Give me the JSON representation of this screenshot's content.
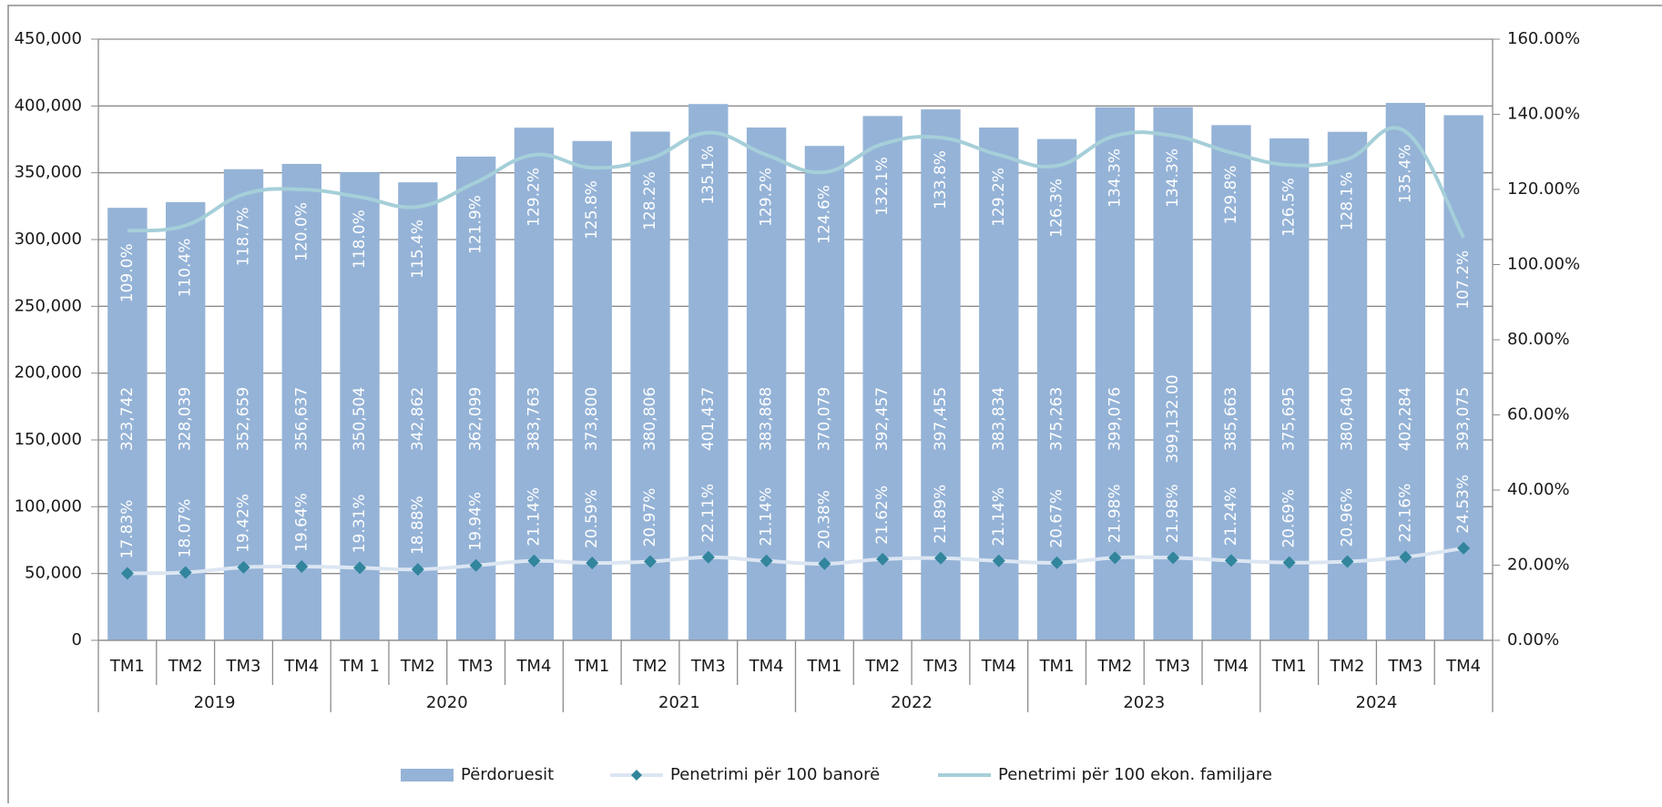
{
  "chart_data": {
    "type": "bar",
    "categories": [
      "TM1",
      "TM2",
      "TM3",
      "TM4",
      "TM 1",
      "TM2",
      "TM3",
      "TM4",
      "TM1",
      "TM2",
      "TM3",
      "TM4",
      "TM1",
      "TM2",
      "TM3",
      "TM4",
      "TM1",
      "TM2",
      "TM3",
      "TM4",
      "TM1",
      "TM2",
      "TM3",
      "TM4"
    ],
    "years": [
      "2019",
      "2020",
      "2021",
      "2022",
      "2023",
      "2024"
    ],
    "ylim": [
      0,
      450000
    ],
    "yticks": [
      {
        "value": 0,
        "label": "0"
      },
      {
        "value": 50000,
        "label": "50,000"
      },
      {
        "value": 100000,
        "label": "100,000"
      },
      {
        "value": 150000,
        "label": "150,000"
      },
      {
        "value": 200000,
        "label": "200,000"
      },
      {
        "value": 250000,
        "label": "250,000"
      },
      {
        "value": 300000,
        "label": "300,000"
      },
      {
        "value": 350000,
        "label": "350,000"
      },
      {
        "value": 400000,
        "label": "400,000"
      },
      {
        "value": 450000,
        "label": "450,000"
      }
    ],
    "y2lim": [
      0,
      160
    ],
    "y2ticks": [
      {
        "value": 0,
        "label": "0.00%"
      },
      {
        "value": 20,
        "label": "20.00%"
      },
      {
        "value": 40,
        "label": "40.00%"
      },
      {
        "value": 60,
        "label": "60.00%"
      },
      {
        "value": 80,
        "label": "80.00%"
      },
      {
        "value": 100,
        "label": "100.00%"
      },
      {
        "value": 120,
        "label": "120.00%"
      },
      {
        "value": 140,
        "label": "140.00%"
      },
      {
        "value": 160,
        "label": "160.00%"
      }
    ],
    "grid": true,
    "legend": "bottom",
    "series": [
      {
        "name": "Përdoruesit",
        "type": "bar",
        "color": "#95b3d7",
        "values": [
          323742,
          328039,
          352659,
          356637,
          350504,
          342862,
          362099,
          383763,
          373800,
          380806,
          401437,
          383868,
          370079,
          392457,
          397455,
          383834,
          375263,
          399076,
          399132,
          385663,
          375695,
          380640,
          402284,
          393075
        ],
        "value_labels": [
          "323,742",
          "328,039",
          "352,659",
          "356,637",
          "350,504",
          "342,862",
          "362,099",
          "383,763",
          "373,800",
          "380,806",
          "401,437",
          "383,868",
          "370,079",
          "392,457",
          "397,455",
          "383,834",
          "375,263",
          "399,076",
          "399,132.00",
          "385,663",
          "375,695",
          "380,640",
          "402,284",
          "393,075"
        ]
      },
      {
        "name": "Penetrimi për 100 banorë",
        "type": "line",
        "axis": "y2",
        "color": "#dce6f2",
        "marker": "diamond",
        "marker_color": "#31859c",
        "values": [
          17.83,
          18.07,
          19.42,
          19.64,
          19.31,
          18.88,
          19.94,
          21.14,
          20.59,
          20.97,
          22.11,
          21.14,
          20.38,
          21.62,
          21.89,
          21.14,
          20.67,
          21.98,
          21.98,
          21.24,
          20.69,
          20.96,
          22.16,
          24.53
        ],
        "value_labels": [
          "17.83%",
          "18.07%",
          "19.42%",
          "19.64%",
          "19.31%",
          "18.88%",
          "19.94%",
          "21.14%",
          "20.59%",
          "20.97%",
          "22.11%",
          "21.14%",
          "20.38%",
          "21.62%",
          "21.89%",
          "21.14%",
          "20.67%",
          "21.98%",
          "21.98%",
          "21.24%",
          "20.69%",
          "20.96%",
          "22.16%",
          "24.53%"
        ]
      },
      {
        "name": "Penetrimi për 100 ekon. familjare",
        "type": "line",
        "axis": "y2",
        "color": "#a5cfd9",
        "values": [
          109.0,
          110.4,
          118.7,
          120.0,
          118.0,
          115.4,
          121.9,
          129.2,
          125.8,
          128.2,
          135.1,
          129.2,
          124.6,
          132.1,
          133.8,
          129.2,
          126.3,
          134.3,
          134.3,
          129.8,
          126.5,
          128.1,
          135.4,
          107.2
        ],
        "value_labels": [
          "109.0%",
          "110.4%",
          "118.7%",
          "120.0%",
          "118.0%",
          "115.4%",
          "121.9%",
          "129.2%",
          "125.8%",
          "128.2%",
          "135.1%",
          "129.2%",
          "124.6%",
          "132.1%",
          "133.8%",
          "129.2%",
          "126.3%",
          "134.3%",
          "134.3%",
          "129.8%",
          "126.5%",
          "128.1%",
          "135.4%",
          "107.2%"
        ]
      }
    ]
  }
}
